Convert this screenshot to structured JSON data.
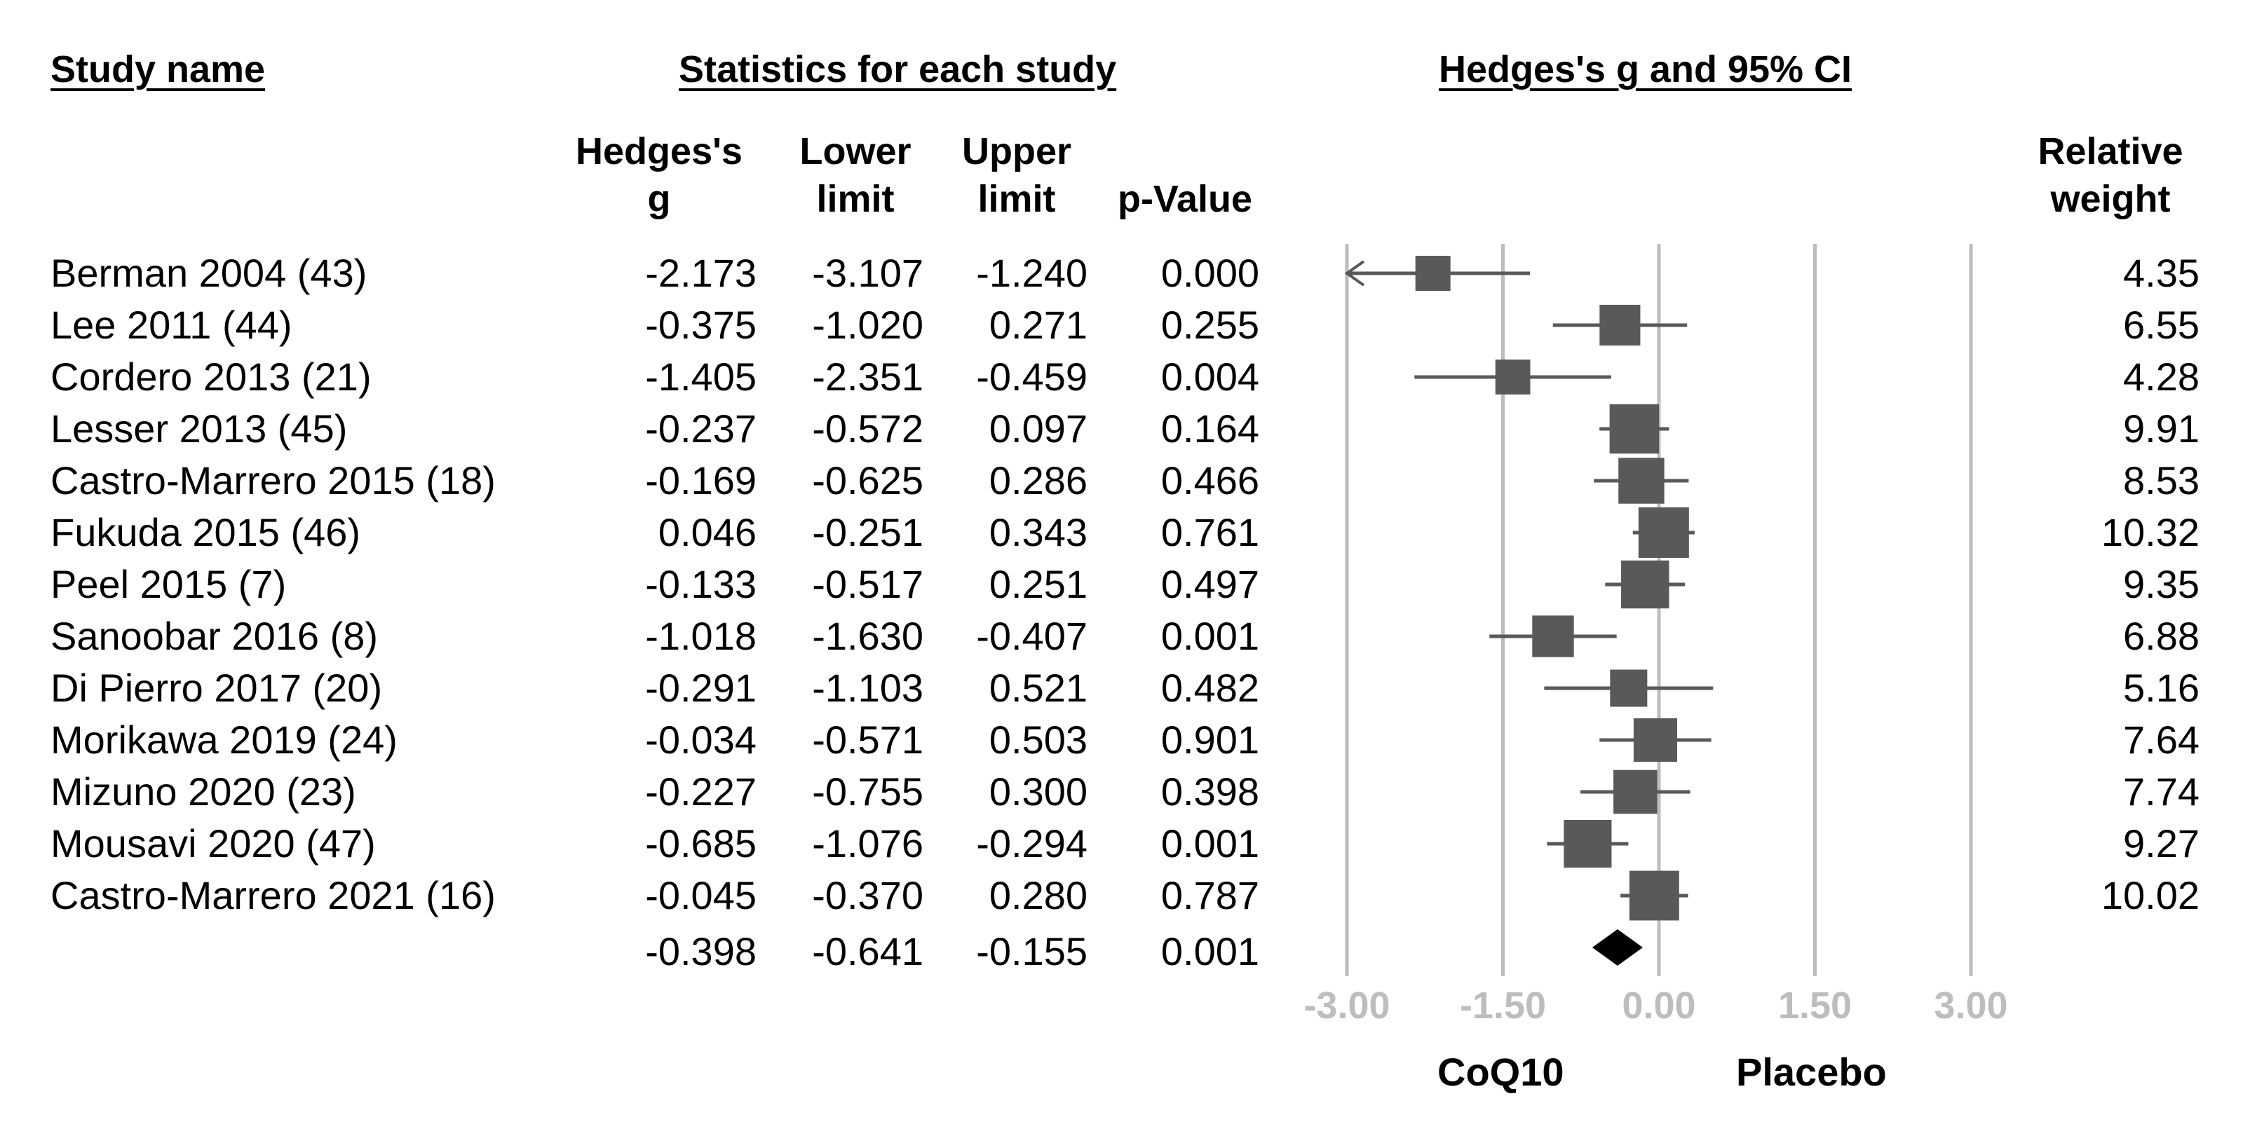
{
  "headers": {
    "study_name": "Study name",
    "statistics": "Statistics for each study",
    "effect_plot": "Hedges's g and 95% CI"
  },
  "columns": {
    "g": [
      "Hedges's",
      "g"
    ],
    "lower": [
      "Lower",
      "limit"
    ],
    "upper": [
      "Upper",
      "limit"
    ],
    "p": [
      "",
      "p-Value"
    ],
    "weight": [
      "Relative",
      "weight"
    ]
  },
  "studies": [
    {
      "name": "Berman 2004 (43)",
      "g": "-2.173",
      "lower": "-3.107",
      "upper": "-1.240",
      "p": "0.000",
      "weight": "4.35"
    },
    {
      "name": "Lee 2011 (44)",
      "g": "-0.375",
      "lower": "-1.020",
      "upper": "0.271",
      "p": "0.255",
      "weight": "6.55"
    },
    {
      "name": "Cordero 2013 (21)",
      "g": "-1.405",
      "lower": "-2.351",
      "upper": "-0.459",
      "p": "0.004",
      "weight": "4.28"
    },
    {
      "name": "Lesser 2013 (45)",
      "g": "-0.237",
      "lower": "-0.572",
      "upper": "0.097",
      "p": "0.164",
      "weight": "9.91"
    },
    {
      "name": "Castro-Marrero 2015 (18)",
      "g": "-0.169",
      "lower": "-0.625",
      "upper": "0.286",
      "p": "0.466",
      "weight": "8.53"
    },
    {
      "name": "Fukuda 2015 (46)",
      "g": "0.046",
      "lower": "-0.251",
      "upper": "0.343",
      "p": "0.761",
      "weight": "10.32"
    },
    {
      "name": "Peel 2015 (7)",
      "g": "-0.133",
      "lower": "-0.517",
      "upper": "0.251",
      "p": "0.497",
      "weight": "9.35"
    },
    {
      "name": "Sanoobar 2016 (8)",
      "g": "-1.018",
      "lower": "-1.630",
      "upper": "-0.407",
      "p": "0.001",
      "weight": "6.88"
    },
    {
      "name": "Di Pierro 2017 (20)",
      "g": "-0.291",
      "lower": "-1.103",
      "upper": "0.521",
      "p": "0.482",
      "weight": "5.16"
    },
    {
      "name": "Morikawa 2019 (24)",
      "g": "-0.034",
      "lower": "-0.571",
      "upper": "0.503",
      "p": "0.901",
      "weight": "7.64"
    },
    {
      "name": "Mizuno 2020 (23)",
      "g": "-0.227",
      "lower": "-0.755",
      "upper": "0.300",
      "p": "0.398",
      "weight": "7.74"
    },
    {
      "name": "Mousavi 2020 (47)",
      "g": "-0.685",
      "lower": "-1.076",
      "upper": "-0.294",
      "p": "0.001",
      "weight": "9.27"
    },
    {
      "name": "Castro-Marrero 2021 (16)",
      "g": "-0.045",
      "lower": "-0.370",
      "upper": "0.280",
      "p": "0.787",
      "weight": "10.02"
    }
  ],
  "summary": {
    "g": "-0.398",
    "lower": "-0.641",
    "upper": "-0.155",
    "p": "0.001"
  },
  "favor": {
    "left": "CoQ10",
    "right": "Placebo"
  },
  "colors": {
    "marker": "#595959",
    "summary": "#000000",
    "gridline": "#bdbdbd",
    "tick_label": "#bdbdbd"
  },
  "chart_data": {
    "type": "forest",
    "title": "Hedges's g and 95% CI",
    "xlabel_left": "CoQ10",
    "xlabel_right": "Placebo",
    "xlim": [
      -3,
      3
    ],
    "ticks": [
      -3,
      -1.5,
      0,
      1.5,
      3
    ],
    "tick_labels": [
      "-3.00",
      "-1.50",
      "0.00",
      "1.50",
      "3.00"
    ],
    "grid": true,
    "points": [
      {
        "study": "Berman 2004 (43)",
        "g": -2.173,
        "lower": -3.107,
        "upper": -1.24,
        "weight": 4.35
      },
      {
        "study": "Lee 2011 (44)",
        "g": -0.375,
        "lower": -1.02,
        "upper": 0.271,
        "weight": 6.55
      },
      {
        "study": "Cordero 2013 (21)",
        "g": -1.405,
        "lower": -2.351,
        "upper": -0.459,
        "weight": 4.28
      },
      {
        "study": "Lesser 2013 (45)",
        "g": -0.237,
        "lower": -0.572,
        "upper": 0.097,
        "weight": 9.91
      },
      {
        "study": "Castro-Marrero 2015 (18)",
        "g": -0.169,
        "lower": -0.625,
        "upper": 0.286,
        "weight": 8.53
      },
      {
        "study": "Fukuda 2015 (46)",
        "g": 0.046,
        "lower": -0.251,
        "upper": 0.343,
        "weight": 10.32
      },
      {
        "study": "Peel 2015 (7)",
        "g": -0.133,
        "lower": -0.517,
        "upper": 0.251,
        "weight": 9.35
      },
      {
        "study": "Sanoobar 2016 (8)",
        "g": -1.018,
        "lower": -1.63,
        "upper": -0.407,
        "weight": 6.88
      },
      {
        "study": "Di Pierro 2017 (20)",
        "g": -0.291,
        "lower": -1.103,
        "upper": 0.521,
        "weight": 5.16
      },
      {
        "study": "Morikawa 2019 (24)",
        "g": -0.034,
        "lower": -0.571,
        "upper": 0.503,
        "weight": 7.64
      },
      {
        "study": "Mizuno 2020 (23)",
        "g": -0.227,
        "lower": -0.755,
        "upper": 0.3,
        "weight": 7.74
      },
      {
        "study": "Mousavi 2020 (47)",
        "g": -0.685,
        "lower": -1.076,
        "upper": -0.294,
        "weight": 9.27
      },
      {
        "study": "Castro-Marrero 2021 (16)",
        "g": -0.045,
        "lower": -0.37,
        "upper": 0.28,
        "weight": 10.02
      }
    ],
    "summary": {
      "g": -0.398,
      "lower": -0.641,
      "upper": -0.155
    }
  }
}
